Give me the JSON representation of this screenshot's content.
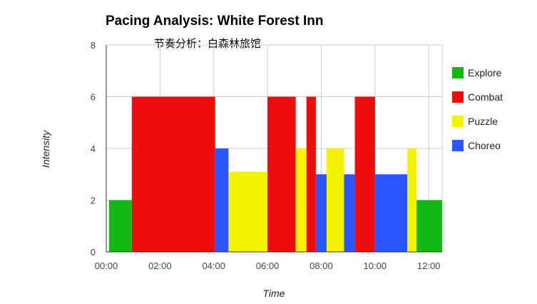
{
  "chart_data": {
    "type": "bar",
    "title": "Pacing Analysis: White Forest Inn",
    "subtitle": "节奏分析：白森林旅馆",
    "xlabel": "Time",
    "ylabel": "Intensity",
    "xlim": [
      0,
      12.5
    ],
    "ylim": [
      0,
      8
    ],
    "x_ticks": [
      {
        "value": 0,
        "label": "00:00"
      },
      {
        "value": 2,
        "label": "02:00"
      },
      {
        "value": 4,
        "label": "04:00"
      },
      {
        "value": 6,
        "label": "06:00"
      },
      {
        "value": 8,
        "label": "08:00"
      },
      {
        "value": 10,
        "label": "10:00"
      },
      {
        "value": 12,
        "label": "12:00"
      }
    ],
    "y_ticks": [
      0,
      2,
      4,
      6,
      8
    ],
    "grid": true,
    "legend_position": "right",
    "series": [
      {
        "name": "Explore",
        "color": "#14b814"
      },
      {
        "name": "Combat",
        "color": "#ee0d0d"
      },
      {
        "name": "Puzzle",
        "color": "#f4f400"
      },
      {
        "name": "Choreo",
        "color": "#2a55ff"
      }
    ],
    "segments": [
      {
        "series": "Explore",
        "start": 0.1,
        "end": 0.95,
        "value": 2
      },
      {
        "series": "Combat",
        "start": 0.95,
        "end": 4.05,
        "value": 6
      },
      {
        "series": "Choreo",
        "start": 4.05,
        "end": 4.55,
        "value": 4
      },
      {
        "series": "Puzzle",
        "start": 4.55,
        "end": 6.0,
        "value": 3.1
      },
      {
        "series": "Combat",
        "start": 6.0,
        "end": 7.05,
        "value": 6
      },
      {
        "series": "Puzzle",
        "start": 7.05,
        "end": 7.45,
        "value": 4
      },
      {
        "series": "Combat",
        "start": 7.45,
        "end": 7.8,
        "value": 6
      },
      {
        "series": "Choreo",
        "start": 7.8,
        "end": 8.2,
        "value": 3
      },
      {
        "series": "Puzzle",
        "start": 8.2,
        "end": 8.85,
        "value": 4
      },
      {
        "series": "Choreo",
        "start": 8.85,
        "end": 9.25,
        "value": 3
      },
      {
        "series": "Combat",
        "start": 9.25,
        "end": 10.0,
        "value": 6
      },
      {
        "series": "Choreo",
        "start": 10.0,
        "end": 11.2,
        "value": 3
      },
      {
        "series": "Puzzle",
        "start": 11.2,
        "end": 11.55,
        "value": 4
      },
      {
        "series": "Explore",
        "start": 11.55,
        "end": 12.5,
        "value": 2
      }
    ]
  }
}
